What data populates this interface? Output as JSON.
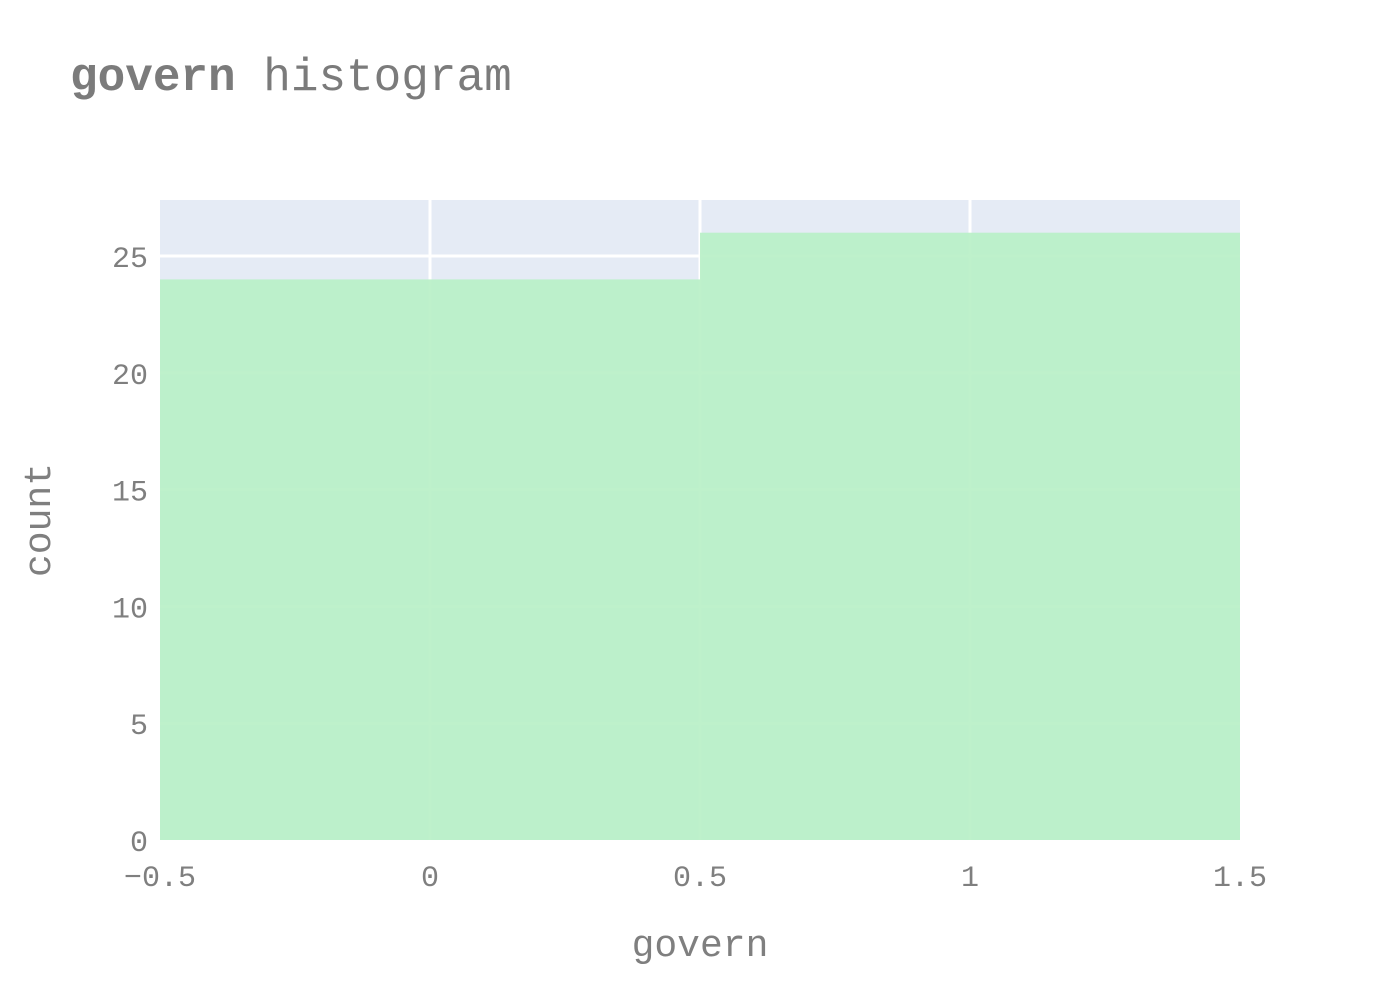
{
  "title": {
    "bold": "govern",
    "rest": " histogram"
  },
  "colors": {
    "plot_background": "#e5ebf5",
    "gridline": "#ffffff",
    "bar_fill": "#b9f0c7",
    "text": "#7f7f7f"
  },
  "chart_data": {
    "type": "bar",
    "subtype": "histogram",
    "xlabel": "govern",
    "ylabel": "count",
    "xlim": [
      -0.5,
      1.5
    ],
    "ylim": [
      0,
      27.4
    ],
    "xticks": [
      -0.5,
      0,
      0.5,
      1,
      1.5
    ],
    "xtick_labels": [
      "−0.5",
      "0",
      "0.5",
      "1",
      "1.5"
    ],
    "yticks": [
      0,
      5,
      10,
      15,
      20,
      25
    ],
    "ytick_labels": [
      "0",
      "5",
      "10",
      "15",
      "20",
      "25"
    ],
    "bins": [
      {
        "start": -0.5,
        "end": 0.5,
        "count": 24
      },
      {
        "start": 0.5,
        "end": 1.5,
        "count": 26
      }
    ],
    "grid": true,
    "legend": "none"
  }
}
